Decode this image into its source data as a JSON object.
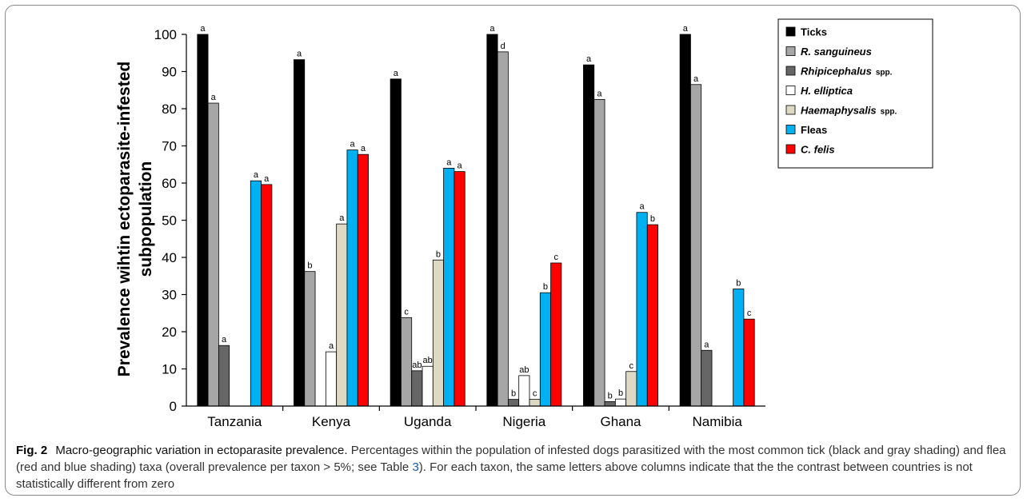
{
  "chart_data": {
    "type": "bar",
    "ylabel_line1": "Prevalence wihtin ectoparasite-infested",
    "ylabel_line2": "subpopulation",
    "ylim": [
      0,
      100
    ],
    "yticks": [
      0,
      10,
      20,
      30,
      40,
      50,
      60,
      70,
      80,
      90,
      100
    ],
    "legend_position": "top-right",
    "categories": [
      "Tanzania",
      "Kenya",
      "Uganda",
      "Nigeria",
      "Ghana",
      "Namibia"
    ],
    "series": [
      {
        "name": "Ticks",
        "name_style": "bold",
        "color": "#000000",
        "values": [
          100,
          93.2,
          88,
          100,
          91.8,
          100
        ],
        "labels": [
          "a",
          "a",
          "a",
          "a",
          "a",
          "a"
        ]
      },
      {
        "name": "R. sanguineus",
        "name_style": "bold-italic",
        "color": "#a6a6a6",
        "values": [
          81.5,
          36.2,
          23.8,
          95.3,
          82.5,
          86.5
        ],
        "labels": [
          "a",
          "b",
          "c",
          "d",
          "a",
          "a"
        ]
      },
      {
        "name": "Rhipicephalus",
        "name_suffix": "spp.",
        "name_style": "bold-italic",
        "color": "#666666",
        "values": [
          16.3,
          null,
          9.5,
          1.8,
          1.2,
          15
        ],
        "labels": [
          "a",
          null,
          "ab",
          "b",
          "b",
          "a"
        ]
      },
      {
        "name": "H. elliptica",
        "name_style": "bold-italic",
        "color": "#ffffff",
        "values": [
          null,
          14.6,
          10.7,
          8.2,
          1.9,
          null
        ],
        "labels": [
          null,
          "a",
          "ab",
          "ab",
          "b",
          null
        ]
      },
      {
        "name": "Haemaphysalis",
        "name_suffix": "spp.",
        "name_style": "bold-italic",
        "color": "#ddd9c3",
        "values": [
          null,
          49,
          39.3,
          1.8,
          9.3,
          null
        ],
        "labels": [
          null,
          "a",
          "b",
          "c",
          "c",
          null
        ]
      },
      {
        "name": "Fleas",
        "name_style": "bold",
        "color": "#00b0f0",
        "values": [
          60.6,
          68.9,
          64,
          30.5,
          52.1,
          31.5
        ],
        "labels": [
          "a",
          "a",
          "a",
          "b",
          "a",
          "b"
        ]
      },
      {
        "name": "C. felis",
        "name_style": "bold-italic",
        "color": "#ff0000",
        "values": [
          59.6,
          67.7,
          63.1,
          38.5,
          48.8,
          23.4
        ],
        "labels": [
          "a",
          "a",
          "a",
          "c",
          "b",
          "c"
        ]
      }
    ]
  },
  "caption": {
    "label": "Fig. 2",
    "title": "Macro-geographic variation in ectoparasite prevalence.",
    "text_before_ref": "Percentages within the population of infested dogs parasitized with the most common tick (black and gray shading) and flea (red and blue shading) taxa (overall prevalence per taxon > 5%; see Table ",
    "ref": "3",
    "text_after_ref": "). For each taxon, the same letters above columns indicate that the the contrast between countries is not statistically different from zero"
  }
}
